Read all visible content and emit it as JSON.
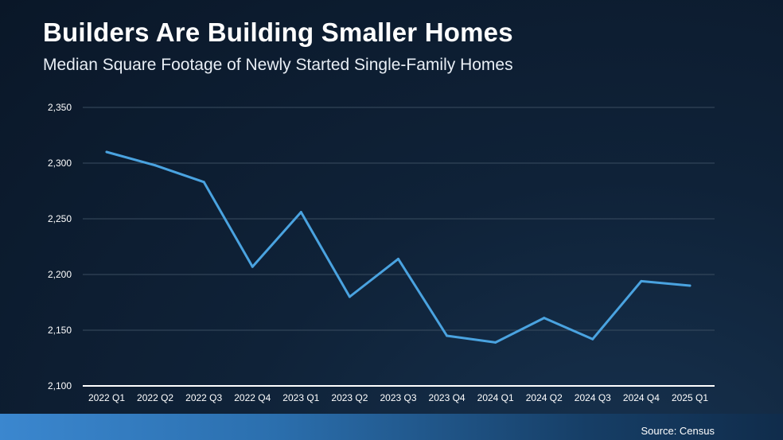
{
  "header": {
    "title": "Builders Are Building Smaller Homes",
    "subtitle": "Median Square Footage of Newly Started Single-Family Homes"
  },
  "footer": {
    "source": "Source: Census"
  },
  "colors": {
    "line": "#4aa3e0",
    "grid": "#3a4d60",
    "axis": "#ffffff"
  },
  "chart_data": {
    "type": "line",
    "title": "Builders Are Building Smaller Homes",
    "subtitle": "Median Square Footage of Newly Started Single-Family Homes",
    "xlabel": "",
    "ylabel": "",
    "categories": [
      "2022 Q1",
      "2022 Q2",
      "2022 Q3",
      "2022 Q4",
      "2023 Q1",
      "2023 Q2",
      "2023 Q3",
      "2023 Q4",
      "2024 Q1",
      "2024 Q2",
      "2024 Q3",
      "2024 Q4",
      "2025 Q1"
    ],
    "series": [
      {
        "name": "Median Square Footage",
        "values": [
          2310,
          2298,
          2283,
          2207,
          2256,
          2180,
          2214,
          2145,
          2139,
          2161,
          2142,
          2194,
          2190
        ]
      }
    ],
    "ylim": [
      2100,
      2350
    ],
    "yticks": [
      2100,
      2150,
      2200,
      2250,
      2300,
      2350
    ],
    "ytick_labels": [
      "2,100",
      "2,150",
      "2,200",
      "2,250",
      "2,300",
      "2,350"
    ],
    "grid": true,
    "legend": "none"
  }
}
